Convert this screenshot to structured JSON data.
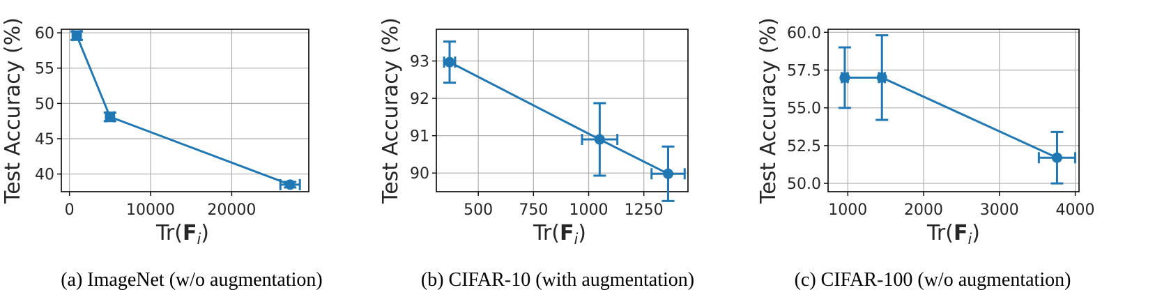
{
  "series_color": "#1f77b4",
  "chart_data": [
    {
      "type": "line",
      "caption": "(a) ImageNet (w/o augmentation)",
      "xlabel": "Tr(F_i)",
      "ylabel": "Test Accuracy (%)",
      "xlim": [
        -1000,
        29500
      ],
      "ylim": [
        37.5,
        60.5
      ],
      "xticks": [
        0,
        10000,
        20000
      ],
      "xtick_labels": [
        "0",
        "10000",
        "20000"
      ],
      "yticks": [
        40,
        45,
        50,
        55,
        60
      ],
      "ytick_labels": [
        "40",
        "45",
        "50",
        "55",
        "60"
      ],
      "grid": true,
      "points": [
        {
          "x": 900,
          "y": 59.6,
          "xerr": 500,
          "yerr": 0.6
        },
        {
          "x": 5000,
          "y": 48.1,
          "xerr": 500,
          "yerr": 0.6
        },
        {
          "x": 27200,
          "y": 38.5,
          "xerr": 1200,
          "yerr": 0.4
        }
      ]
    },
    {
      "type": "line",
      "caption": "(b) CIFAR-10 (with augmentation)",
      "xlabel": "Tr(F_i)",
      "ylabel": "Test Accuracy (%)",
      "xlim": [
        310,
        1450
      ],
      "ylim": [
        89.5,
        93.85
      ],
      "xticks": [
        500,
        750,
        1000,
        1250
      ],
      "xtick_labels": [
        "500",
        "750",
        "1000",
        "1250"
      ],
      "yticks": [
        90,
        91,
        92,
        93
      ],
      "ytick_labels": [
        "90",
        "91",
        "92",
        "93"
      ],
      "grid": true,
      "points": [
        {
          "x": 370,
          "y": 92.97,
          "xerr": 25,
          "yerr": 0.55
        },
        {
          "x": 1050,
          "y": 90.9,
          "xerr": 80,
          "yerr": 0.97
        },
        {
          "x": 1360,
          "y": 89.98,
          "xerr": 75,
          "yerr": 0.73
        }
      ]
    },
    {
      "type": "line",
      "caption": "(c) CIFAR-100 (w/o augmentation)",
      "xlabel": "Tr(F_i)",
      "ylabel": "Test Accuracy (%)",
      "xlim": [
        740,
        4050
      ],
      "ylim": [
        49.45,
        60.2
      ],
      "xticks": [
        1000,
        2000,
        3000,
        4000
      ],
      "xtick_labels": [
        "1000",
        "2000",
        "3000",
        "4000"
      ],
      "yticks": [
        50,
        52.5,
        55,
        57.5,
        60
      ],
      "ytick_labels": [
        "50.0",
        "52.5",
        "55.0",
        "57.5",
        "60.0"
      ],
      "grid": true,
      "points": [
        {
          "x": 960,
          "y": 57.0,
          "xerr": 40,
          "yerr": 2.0
        },
        {
          "x": 1450,
          "y": 57.0,
          "xerr": 40,
          "yerr": 2.8
        },
        {
          "x": 3760,
          "y": 51.7,
          "xerr": 240,
          "yerr": 1.7
        }
      ]
    }
  ]
}
